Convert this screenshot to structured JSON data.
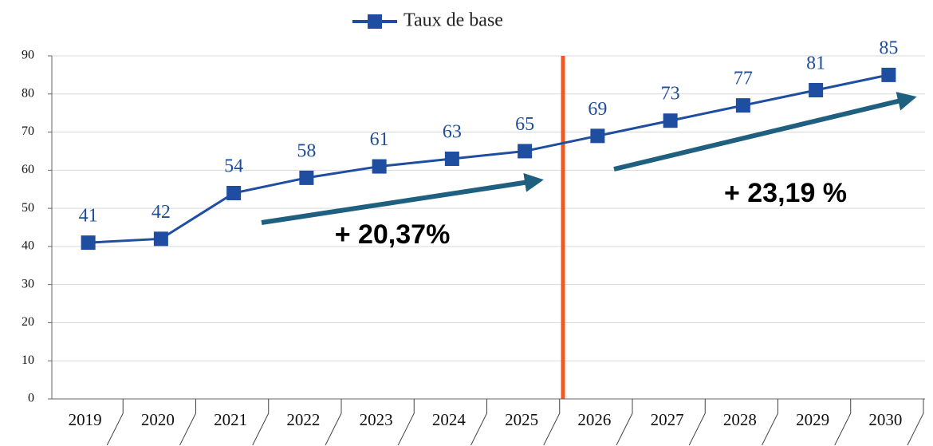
{
  "chart_data": {
    "type": "line",
    "categories": [
      "2019",
      "2020",
      "2021",
      "2022",
      "2023",
      "2024",
      "2025",
      "2026",
      "2027",
      "2028",
      "2029",
      "2030"
    ],
    "series": [
      {
        "name": "Taux de base",
        "color": "#1f4ea1",
        "values": [
          41,
          42,
          54,
          58,
          61,
          63,
          65,
          69,
          73,
          77,
          81,
          85
        ]
      }
    ],
    "ylim": [
      0,
      90
    ],
    "yticks": [
      0,
      10,
      20,
      30,
      40,
      50,
      60,
      70,
      80,
      90
    ],
    "grid": true,
    "legend": "top",
    "annotations": [
      "+ 20,37%",
      "+ 23,19 %"
    ]
  }
}
